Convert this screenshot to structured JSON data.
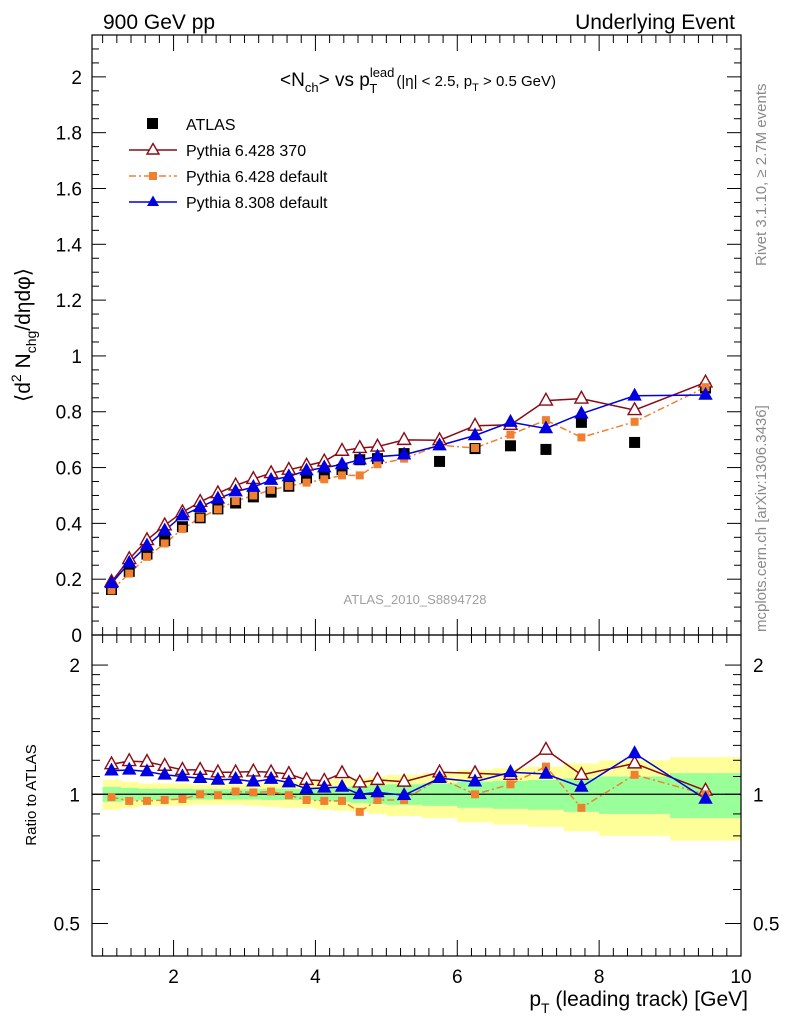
{
  "header": {
    "left": "900 GeV pp",
    "right": "Underlying Event"
  },
  "side_labels": {
    "rivet": "Rivet 3.1.10, ≥ 2.7M events",
    "mcplots": "mcplots.cern.ch [arXiv:1306.3436]"
  },
  "watermark": "ATLAS_2010_S8894728",
  "colors": {
    "atlas": "#000000",
    "pythia6_370": "#8b0a14",
    "pythia6_default": "#f08030",
    "pythia8_default": "#0000e0",
    "band_inner": "#99ff99",
    "band_outer": "#ffff99"
  },
  "chart_data": [
    {
      "type": "scatter",
      "title_parts": {
        "n": "<N",
        "n_sub": "ch",
        "vs": "> vs p",
        "p_sup": "lead",
        "p_sub": "T",
        "cut1": "(|η| < 2.5, p",
        "cut_sub": "T",
        "cut2": " > 0.5 GeV)"
      },
      "ylabel_parts": {
        "a": "⟨d",
        "a_sup": "2",
        "b": " N",
        "b_sub": "chg",
        "c": "/dηdφ⟩"
      },
      "xlim": [
        0.85,
        10.0
      ],
      "ylim": [
        0,
        2.15
      ],
      "y_ticks": [
        0,
        0.2,
        0.4,
        0.6,
        0.8,
        1,
        1.2,
        1.4,
        1.6,
        1.8,
        2
      ],
      "y_tick_labels": [
        "0",
        "0.2",
        "0.4",
        "0.6",
        "0.8",
        "1",
        "1.2",
        "1.4",
        "1.6",
        "1.8",
        "2"
      ],
      "legend_position": "top-left",
      "x": [
        1.125,
        1.375,
        1.625,
        1.875,
        2.125,
        2.375,
        2.625,
        2.875,
        3.125,
        3.375,
        3.625,
        3.875,
        4.125,
        4.375,
        4.625,
        4.875,
        5.25,
        5.75,
        6.25,
        6.75,
        7.25,
        7.75,
        8.5,
        9.5
      ],
      "series": [
        {
          "name": "ATLAS",
          "marker": "square",
          "values": [
            0.163,
            0.228,
            0.29,
            0.338,
            0.388,
            0.42,
            0.452,
            0.473,
            0.495,
            0.512,
            0.533,
            0.563,
            0.578,
            0.593,
            0.628,
            0.632,
            0.65,
            0.622,
            0.668,
            0.678,
            0.665,
            0.762,
            0.69,
            0.885
          ]
        },
        {
          "name": "Pythia 6.428 370",
          "marker": "open-triangle",
          "values": [
            0.19,
            0.272,
            0.34,
            0.393,
            0.44,
            0.477,
            0.508,
            0.536,
            0.559,
            0.58,
            0.592,
            0.607,
            0.622,
            0.66,
            0.67,
            0.675,
            0.699,
            0.698,
            0.75,
            0.753,
            0.84,
            0.847,
            0.806,
            0.905
          ]
        },
        {
          "name": "Pythia 6.428 default",
          "marker": "small-square",
          "values": [
            0.16,
            0.22,
            0.28,
            0.328,
            0.38,
            0.42,
            0.45,
            0.48,
            0.5,
            0.52,
            0.534,
            0.546,
            0.558,
            0.572,
            0.572,
            0.612,
            0.632,
            0.68,
            0.67,
            0.718,
            0.77,
            0.708,
            0.764,
            0.888
          ]
        },
        {
          "name": "Pythia 8.308 default",
          "marker": "triangle",
          "values": [
            0.185,
            0.258,
            0.32,
            0.374,
            0.428,
            0.458,
            0.488,
            0.514,
            0.53,
            0.555,
            0.568,
            0.589,
            0.6,
            0.611,
            0.628,
            0.639,
            0.646,
            0.679,
            0.715,
            0.763,
            0.74,
            0.793,
            0.857,
            0.86
          ]
        }
      ]
    },
    {
      "type": "scatter",
      "ylabel": "Ratio to ATLAS",
      "xlabel_parts": {
        "p": "p",
        "p_sub": "T",
        "rest": " (leading track) [GeV]"
      },
      "y_scale": "log",
      "xlim": [
        0.85,
        10.0
      ],
      "ylim": [
        0.42,
        2.35
      ],
      "x_ticks": [
        2,
        4,
        6,
        8,
        10
      ],
      "x_tick_labels": [
        "2",
        "4",
        "6",
        "8",
        "10"
      ],
      "y_ticks": [
        0.5,
        1,
        2
      ],
      "y_tick_labels": [
        "0.5",
        "1",
        "2"
      ],
      "reference_line": 1,
      "bands": {
        "edges": [
          1.0,
          1.25,
          1.5,
          1.75,
          2.0,
          2.25,
          2.5,
          2.75,
          3.0,
          3.25,
          3.5,
          3.75,
          4.0,
          4.25,
          4.5,
          4.75,
          5.0,
          5.5,
          6.0,
          6.5,
          7.0,
          7.5,
          8.0,
          9.0,
          10.0
        ],
        "inner_half_width": [
          0.04,
          0.035,
          0.03,
          0.03,
          0.03,
          0.028,
          0.028,
          0.028,
          0.028,
          0.03,
          0.03,
          0.03,
          0.035,
          0.04,
          0.045,
          0.05,
          0.055,
          0.06,
          0.07,
          0.075,
          0.08,
          0.09,
          0.1,
          0.12
        ],
        "outer_half_width": [
          0.08,
          0.07,
          0.06,
          0.06,
          0.06,
          0.055,
          0.055,
          0.055,
          0.06,
          0.065,
          0.07,
          0.07,
          0.08,
          0.085,
          0.09,
          0.1,
          0.11,
          0.12,
          0.14,
          0.15,
          0.16,
          0.18,
          0.2,
          0.22
        ]
      },
      "x": [
        1.125,
        1.375,
        1.625,
        1.875,
        2.125,
        2.375,
        2.625,
        2.875,
        3.125,
        3.375,
        3.625,
        3.875,
        4.125,
        4.375,
        4.625,
        4.875,
        5.25,
        5.75,
        6.25,
        6.75,
        7.25,
        7.75,
        8.5,
        9.5
      ],
      "series": [
        {
          "name": "Pythia 6.428 370",
          "values": [
            1.175,
            1.195,
            1.19,
            1.165,
            1.14,
            1.14,
            1.125,
            1.125,
            1.13,
            1.125,
            1.115,
            1.08,
            1.075,
            1.12,
            1.065,
            1.08,
            1.07,
            1.125,
            1.12,
            1.11,
            1.27,
            1.11,
            1.18,
            1.02
          ]
        },
        {
          "name": "Pythia 6.428 default",
          "values": [
            0.985,
            0.965,
            0.965,
            0.97,
            0.975,
            1.0,
            0.995,
            1.015,
            1.01,
            1.015,
            0.995,
            0.97,
            0.965,
            0.965,
            0.91,
            0.97,
            0.97,
            1.09,
            1.0,
            1.055,
            1.16,
            0.93,
            1.11,
            1.0
          ]
        },
        {
          "name": "Pythia 8.308 default",
          "values": [
            1.135,
            1.14,
            1.13,
            1.11,
            1.1,
            1.09,
            1.08,
            1.085,
            1.07,
            1.085,
            1.065,
            1.03,
            1.035,
            1.04,
            1.0,
            1.01,
            0.995,
            1.09,
            1.07,
            1.125,
            1.115,
            1.04,
            1.245,
            0.975
          ]
        }
      ]
    }
  ]
}
